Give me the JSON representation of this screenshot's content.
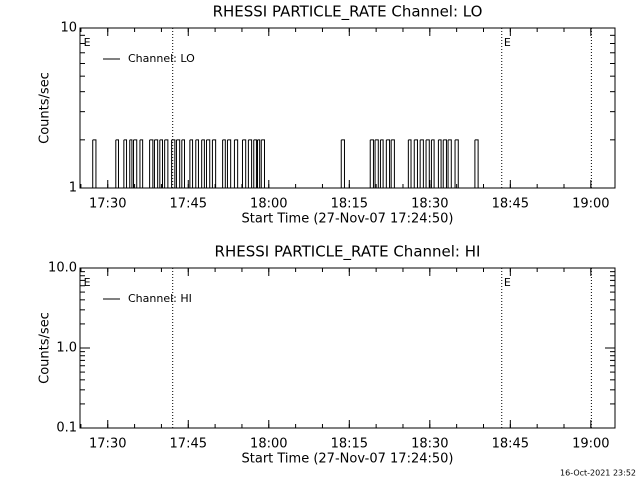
{
  "chart_data": [
    {
      "type": "line",
      "title": "RHESSI PARTICLE_RATE Channel: LO",
      "xlabel": "Start Time (27-Nov-07 17:24:50)",
      "ylabel": "Counts/sec",
      "log_y": true,
      "step": "post",
      "legend": "upper left",
      "xlim": [
        1044.83,
        1144.5
      ],
      "xticks": [
        {
          "value": 1050,
          "label": "17:30"
        },
        {
          "value": 1065,
          "label": "17:45"
        },
        {
          "value": 1080,
          "label": "18:00"
        },
        {
          "value": 1095,
          "label": "18:15"
        },
        {
          "value": 1110,
          "label": "18:30"
        },
        {
          "value": 1125,
          "label": "18:45"
        },
        {
          "value": 1140,
          "label": "19:00"
        }
      ],
      "ylim": [
        1,
        10
      ],
      "yticks": [
        1,
        10
      ],
      "vlines": [
        1062.1,
        1123.4,
        1140.1
      ],
      "annotations": [
        {
          "text": "E",
          "x": 1045.5
        },
        {
          "text": "E",
          "x": 1123.8
        }
      ],
      "series": [
        {
          "name": "Channel: LO",
          "color": "#000000",
          "x": [
            1046.5,
            1047.2,
            1047.8,
            1051.5,
            1052.0,
            1053.0,
            1053.5,
            1054.1,
            1054.5,
            1054.8,
            1055.4,
            1056.0,
            1056.5,
            1057.8,
            1058.4,
            1058.7,
            1059.3,
            1059.7,
            1060.2,
            1060.6,
            1061.2,
            1061.9,
            1062.5,
            1062.8,
            1063.4,
            1063.8,
            1064.3,
            1065.3,
            1065.8,
            1066.4,
            1066.9,
            1067.5,
            1068.0,
            1068.4,
            1069.0,
            1069.5,
            1070.1,
            1071.4,
            1071.9,
            1072.3,
            1072.9,
            1073.6,
            1074.2,
            1075.1,
            1075.7,
            1076.2,
            1076.8,
            1077.2,
            1077.7,
            1077.9,
            1078.3,
            1078.6,
            1079.2,
            1093.5,
            1094.1,
            1098.9,
            1099.5,
            1099.8,
            1100.4,
            1100.8,
            1101.3,
            1101.9,
            1102.5,
            1102.8,
            1103.4,
            1106.0,
            1106.5,
            1107.1,
            1107.7,
            1108.2,
            1108.8,
            1109.3,
            1109.9,
            1110.3,
            1110.8,
            1111.6,
            1112.1,
            1112.5,
            1113.1,
            1113.4,
            1114.0,
            1114.7,
            1115.3,
            1118.4,
            1119.0
          ],
          "values": [
            1,
            2,
            1,
            2,
            1,
            2,
            1,
            2,
            1,
            2,
            1,
            2,
            1,
            2,
            1,
            2,
            1,
            2,
            1,
            2,
            1,
            2,
            1,
            2,
            1,
            2,
            1,
            2,
            1,
            2,
            1,
            2,
            1,
            2,
            1,
            2,
            1,
            2,
            1,
            2,
            1,
            2,
            1,
            2,
            1,
            2,
            1,
            2,
            1,
            2,
            1,
            2,
            1,
            2,
            1,
            2,
            1,
            2,
            1,
            2,
            1,
            2,
            1,
            2,
            1,
            2,
            1,
            2,
            1,
            2,
            1,
            2,
            1,
            2,
            1,
            2,
            1,
            2,
            1,
            2,
            1,
            2,
            1,
            2,
            1
          ]
        }
      ]
    },
    {
      "type": "line",
      "title": "RHESSI PARTICLE_RATE Channel: HI",
      "xlabel": "Start Time (27-Nov-07 17:24:50)",
      "ylabel": "Counts/sec",
      "log_y": true,
      "step": "post",
      "legend": "upper left",
      "xlim": [
        1044.83,
        1144.5
      ],
      "xticks": [
        {
          "value": 1050,
          "label": "17:30"
        },
        {
          "value": 1065,
          "label": "17:45"
        },
        {
          "value": 1080,
          "label": "18:00"
        },
        {
          "value": 1095,
          "label": "18:15"
        },
        {
          "value": 1110,
          "label": "18:30"
        },
        {
          "value": 1125,
          "label": "18:45"
        },
        {
          "value": 1140,
          "label": "19:00"
        }
      ],
      "ylim": [
        0.1,
        10
      ],
      "yticks": [
        0.1,
        {
          "value": 1,
          "label": "1.0"
        },
        {
          "value": 10,
          "label": "10.0"
        }
      ],
      "vlines": [
        1062.1,
        1123.4,
        1140.1
      ],
      "annotations": [
        {
          "text": "E",
          "x": 1045.5
        },
        {
          "text": "E",
          "x": 1123.8
        }
      ],
      "series": [
        {
          "name": "Channel: HI",
          "color": "#000000",
          "x": [],
          "values": []
        }
      ]
    }
  ],
  "footer": "16-Oct-2021 23:52"
}
